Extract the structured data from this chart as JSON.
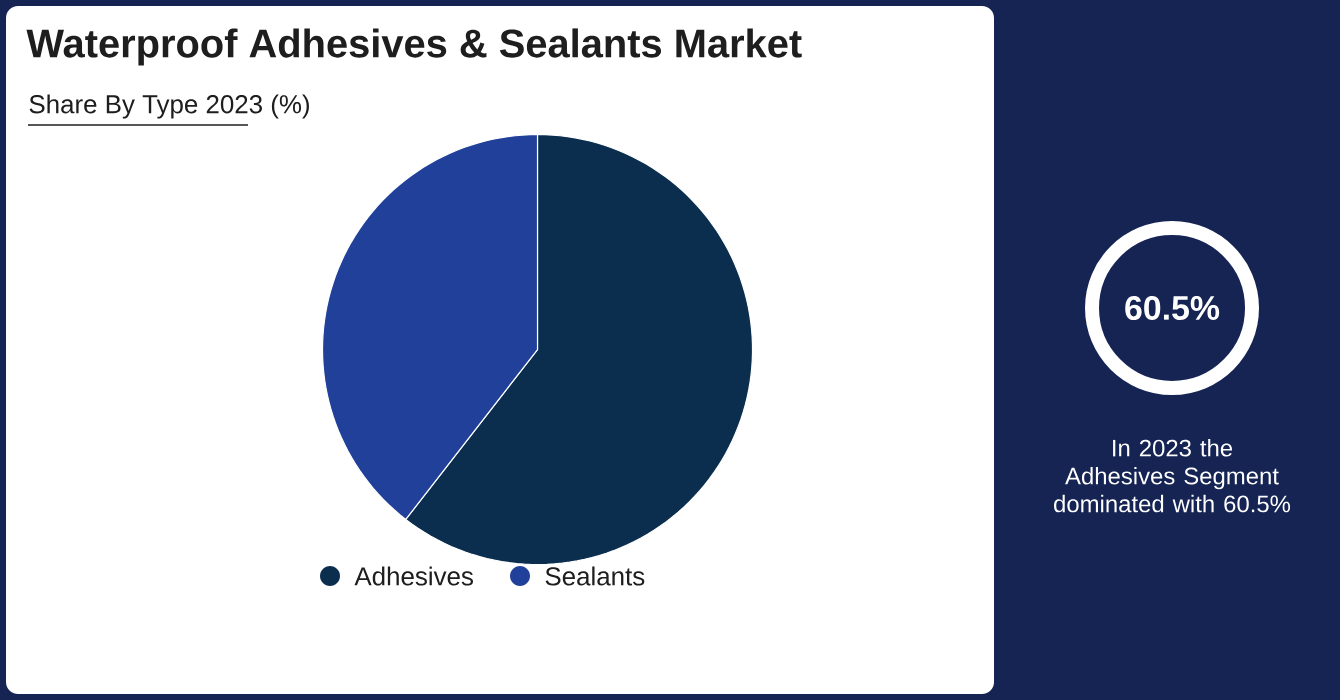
{
  "chart_data": {
    "type": "pie",
    "title": "Waterproof Adhesives & Sealants Market",
    "subtitle": "Share By Type 2023 (%)",
    "categories": [
      "Adhesives",
      "Sealants"
    ],
    "values": [
      60.5,
      39.5
    ],
    "colors": [
      "#0b2e4e",
      "#20409a"
    ],
    "legend": "bottom",
    "annotations": [
      "60.5%",
      "In 2023 the Adhesives Segment dominated with 60.5%"
    ]
  }
}
